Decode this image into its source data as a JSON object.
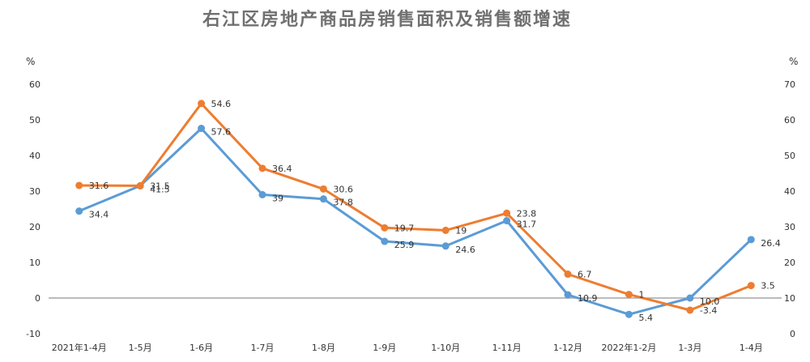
{
  "chart_data": {
    "type": "line",
    "title": "右江区房地产商品房销售面积及销售额增速",
    "left_axis": {
      "unit": "%",
      "ticks": [
        "60",
        "50",
        "40",
        "30",
        "20",
        "10",
        "0",
        "-10"
      ],
      "ylim": [
        -10,
        60
      ]
    },
    "right_axis": {
      "unit": "%",
      "ticks": [
        "70",
        "60",
        "50",
        "40",
        "30",
        "20",
        "10",
        "0"
      ],
      "ylim": [
        0,
        70
      ]
    },
    "categories": [
      "2021年1-4月",
      "1-5月",
      "1-6月",
      "1-7月",
      "1-8月",
      "1-9月",
      "1-10月",
      "1-11月",
      "1-12月",
      "2022年1-2月",
      "1-3月",
      "1-4月"
    ],
    "series": [
      {
        "axis": "left",
        "color": "#ED7D31",
        "values": [
          31.6,
          31.5,
          54.6,
          36.4,
          30.6,
          19.7,
          19,
          23.8,
          6.7,
          1,
          -3.4,
          3.5
        ],
        "labels": [
          "31.6",
          "31.5",
          "54.6",
          "36.4",
          "30.6",
          "19.7",
          "19",
          "23.8",
          "6.7",
          "1",
          "-3.4",
          "3.5"
        ]
      },
      {
        "axis": "right",
        "color": "#5B9BD5",
        "values": [
          34.4,
          41.5,
          57.6,
          39,
          37.8,
          25.9,
          24.6,
          31.7,
          10.9,
          5.4,
          10.0,
          26.4
        ],
        "labels": [
          "34.4",
          "41.5",
          "57.6",
          "39",
          "37.8",
          "25.9",
          "24.6",
          "31.7",
          "10.9",
          "5.4",
          "10.0",
          "26.4"
        ]
      }
    ],
    "grid": false,
    "legend": "none"
  }
}
